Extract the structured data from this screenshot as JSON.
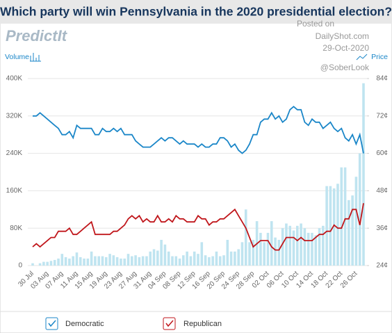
{
  "chart_data": {
    "type": "bar",
    "title": "Which party will win Pennsylvania in the 2020 presidential election?",
    "logo": "PredictIt",
    "annotations": [
      "Posted on",
      "DailyShot.com",
      "29-Oct-2020",
      "@SoberLook"
    ],
    "y2label": "Price",
    "categories": [
      "30 Jul",
      null,
      null,
      null,
      "03 Aug",
      null,
      null,
      null,
      "07 Aug",
      null,
      null,
      null,
      "11 Aug",
      null,
      null,
      null,
      "15 Aug",
      null,
      null,
      null,
      "19 Aug",
      null,
      null,
      null,
      "23 Aug",
      null,
      null,
      null,
      "27 Aug",
      null,
      null,
      null,
      "31 Aug",
      null,
      null,
      null,
      "04 Sep",
      null,
      null,
      null,
      "08 Sep",
      null,
      null,
      null,
      "12 Sep",
      null,
      null,
      null,
      "16 Sep",
      null,
      null,
      null,
      "20 Sep",
      null,
      null,
      null,
      "24 Sep",
      null,
      null,
      null,
      "28 Sep",
      null,
      null,
      null,
      "02 Oct",
      null,
      null,
      null,
      "06 Oct",
      null,
      null,
      null,
      "10 Oct",
      null,
      null,
      null,
      "14 Oct",
      null,
      null,
      null,
      "18 Oct",
      null,
      null,
      null,
      "22 Oct",
      null,
      null,
      null,
      "26 Oct",
      null,
      null
    ],
    "series": [
      {
        "name": "Volume",
        "type": "bar",
        "color": "#bfe4f0",
        "values": [
          5000,
          0,
          5000,
          8000,
          8000,
          10000,
          12000,
          15000,
          25000,
          18000,
          15000,
          20000,
          28000,
          18000,
          15000,
          15000,
          30000,
          20000,
          20000,
          20000,
          18000,
          25000,
          22000,
          18000,
          15000,
          15000,
          25000,
          20000,
          22000,
          18000,
          20000,
          20000,
          30000,
          35000,
          32000,
          55000,
          45000,
          30000,
          20000,
          20000,
          15000,
          22000,
          30000,
          20000,
          30000,
          25000,
          50000,
          22000,
          18000,
          20000,
          30000,
          20000,
          22000,
          55000,
          30000,
          30000,
          35000,
          50000,
          120000,
          50000,
          55000,
          95000,
          70000,
          50000,
          70000,
          95000,
          60000,
          55000,
          80000,
          90000,
          85000,
          75000,
          85000,
          90000,
          80000,
          70000,
          70000,
          65000,
          80000,
          85000,
          170000,
          170000,
          165000,
          175000,
          210000,
          210000,
          140000,
          150000,
          190000,
          240000,
          390000
        ]
      },
      {
        "name": "Democratic",
        "type": "line",
        "axis": "y2",
        "color": "#1a86c8",
        "values": [
          72,
          72,
          73,
          72,
          71,
          70,
          69,
          68,
          66,
          66,
          67,
          65,
          69,
          68,
          68,
          68,
          68,
          66,
          66,
          68,
          67,
          67,
          68,
          67,
          68,
          66,
          66,
          66,
          64,
          63,
          62,
          62,
          62,
          63,
          64,
          65,
          64,
          65,
          65,
          64,
          63,
          64,
          63,
          63,
          63,
          62,
          63,
          62,
          62,
          63,
          63,
          65,
          65,
          64,
          62,
          63,
          61,
          60,
          61,
          63,
          66,
          66,
          70,
          71,
          71,
          73,
          71,
          72,
          70,
          71,
          74,
          75,
          74,
          74,
          70,
          69,
          71,
          70,
          70,
          68,
          69,
          70,
          68,
          67,
          68,
          65,
          64,
          66,
          63,
          66,
          60
        ]
      },
      {
        "name": "Republican",
        "type": "line",
        "axis": "y2",
        "color": "#c0161b",
        "values": [
          30,
          31,
          30,
          31,
          32,
          33,
          33,
          35,
          35,
          35,
          36,
          34,
          34,
          35,
          36,
          37,
          38,
          34,
          34,
          34,
          34,
          34,
          35,
          35,
          36,
          37,
          39,
          40,
          39,
          40,
          38,
          39,
          38,
          38,
          40,
          38,
          38,
          39,
          38,
          40,
          39,
          39,
          38,
          38,
          38,
          40,
          39,
          39,
          37,
          38,
          38,
          39,
          39,
          40,
          41,
          42,
          40,
          38,
          36,
          33,
          30,
          31,
          32,
          32,
          32,
          30,
          29,
          29,
          31,
          33,
          33,
          33,
          32,
          33,
          32,
          32,
          32,
          33,
          34,
          34,
          35,
          35,
          37,
          36,
          36,
          39,
          39,
          42,
          42,
          37,
          44
        ]
      }
    ],
    "ylabel": "Volume",
    "ylim": [
      0,
      400000
    ],
    "yticks": [
      0,
      {
        "value": 80000,
        "label": "80K"
      },
      {
        "value": 160000,
        "label": "160K"
      },
      {
        "value": 240000,
        "label": "240K"
      },
      {
        "value": 320000,
        "label": "320K"
      },
      {
        "value": 400000,
        "label": "400K"
      }
    ],
    "y2lim": [
      24,
      84
    ],
    "y2ticks": [
      {
        "value": 24,
        "label": "24¢"
      },
      {
        "value": 36,
        "label": "36¢"
      },
      {
        "value": 48,
        "label": "48¢"
      },
      {
        "value": 60,
        "label": "60¢"
      },
      {
        "value": 72,
        "label": "72¢"
      },
      {
        "value": 84,
        "label": "84¢"
      }
    ],
    "grid": true
  }
}
